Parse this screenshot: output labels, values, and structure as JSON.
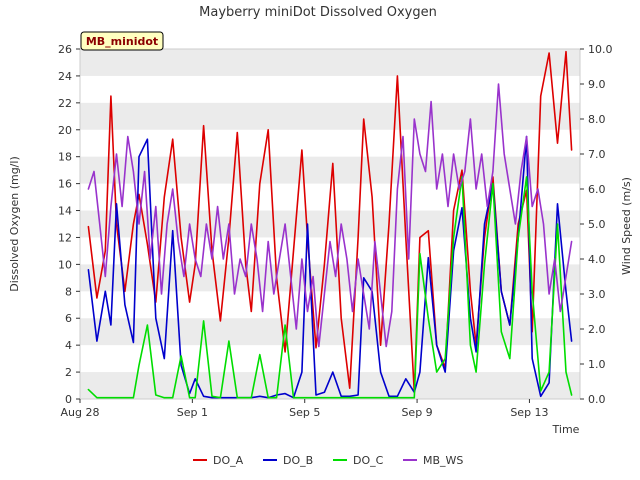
{
  "chart_data": {
    "type": "line",
    "title": "Mayberry miniDot Dissolved Oxygen",
    "badge": "MB_minidot",
    "xlabel": "Time",
    "ylabel": "Dissolved Oxygen (mg/l)",
    "y2label": "Wind Speed (m/s)",
    "x_unit": "days since Aug 28",
    "xlim": [
      0,
      17.8
    ],
    "ylim": [
      0,
      26
    ],
    "y2lim": [
      0,
      10
    ],
    "x_ticks": [
      {
        "value": 0,
        "label": "Aug 28"
      },
      {
        "value": 4,
        "label": "Sep 1"
      },
      {
        "value": 8,
        "label": "Sep 5"
      },
      {
        "value": 12,
        "label": "Sep 9"
      },
      {
        "value": 16,
        "label": "Sep 13"
      }
    ],
    "y_ticks": [
      {
        "value": 0,
        "label": "0"
      },
      {
        "value": 2,
        "label": "2"
      },
      {
        "value": 4,
        "label": "4"
      },
      {
        "value": 6,
        "label": "6"
      },
      {
        "value": 8,
        "label": "8"
      },
      {
        "value": 10,
        "label": "10"
      },
      {
        "value": 12,
        "label": "12"
      },
      {
        "value": 14,
        "label": "14"
      },
      {
        "value": 16,
        "label": "16"
      },
      {
        "value": 18,
        "label": "18"
      },
      {
        "value": 20,
        "label": "20"
      },
      {
        "value": 22,
        "label": "22"
      },
      {
        "value": 24,
        "label": "24"
      },
      {
        "value": 26,
        "label": "26"
      }
    ],
    "y2_ticks": [
      {
        "value": 0,
        "label": "0.0"
      },
      {
        "value": 1,
        "label": "1.0"
      },
      {
        "value": 2,
        "label": "2.0"
      },
      {
        "value": 3,
        "label": "3.0"
      },
      {
        "value": 4,
        "label": "4.0"
      },
      {
        "value": 5,
        "label": "5.0"
      },
      {
        "value": 6,
        "label": "6.0"
      },
      {
        "value": 7,
        "label": "7.0"
      },
      {
        "value": 8,
        "label": "8.0"
      },
      {
        "value": 9,
        "label": "9.0"
      },
      {
        "value": 10,
        "label": "10.0"
      }
    ],
    "background_bands": [
      [
        0,
        2
      ],
      [
        4,
        6
      ],
      [
        8,
        10
      ],
      [
        12,
        14
      ],
      [
        16,
        18
      ],
      [
        20,
        22
      ],
      [
        24,
        26
      ]
    ],
    "band_color": "#ebebeb",
    "series": [
      {
        "name": "DO_A",
        "color": "#dd0000",
        "axis": "left",
        "x": [
          0.3,
          0.6,
          0.9,
          1.1,
          1.3,
          1.6,
          1.9,
          2.1,
          2.4,
          2.7,
          3.0,
          3.3,
          3.6,
          3.9,
          4.1,
          4.4,
          4.7,
          5.0,
          5.3,
          5.6,
          5.9,
          6.1,
          6.4,
          6.7,
          7.0,
          7.3,
          7.6,
          7.9,
          8.1,
          8.4,
          8.7,
          9.0,
          9.3,
          9.6,
          9.9,
          10.1,
          10.4,
          10.7,
          11.0,
          11.3,
          11.6,
          11.9,
          12.1,
          12.4,
          12.7,
          13.0,
          13.3,
          13.6,
          13.9,
          14.1,
          14.4,
          14.7,
          15.0,
          15.3,
          15.6,
          15.9,
          16.1,
          16.4,
          16.7,
          17.0,
          17.3,
          17.5
        ],
        "y": [
          12.8,
          7.5,
          11,
          22.5,
          13,
          8,
          13,
          15.2,
          11.5,
          7.2,
          15,
          19.3,
          12,
          7.2,
          10,
          20.3,
          11,
          5.8,
          12,
          19.8,
          10,
          6.5,
          16,
          20,
          9,
          3.5,
          11,
          18.5,
          12,
          3.8,
          10,
          17.5,
          6,
          0.8,
          12,
          20.8,
          15,
          4,
          13,
          24,
          12,
          0.5,
          12,
          12.5,
          4,
          2.3,
          14,
          17,
          8,
          4,
          12,
          16.5,
          8,
          5.5,
          13,
          15.5,
          5,
          22.5,
          25.7,
          19,
          25.8,
          18.5
        ]
      },
      {
        "name": "DO_B",
        "color": "#0000cc",
        "axis": "left",
        "x": [
          0.3,
          0.6,
          0.9,
          1.1,
          1.3,
          1.6,
          1.9,
          2.1,
          2.4,
          2.7,
          3.0,
          3.3,
          3.6,
          3.9,
          4.1,
          4.4,
          4.7,
          5.0,
          5.3,
          5.6,
          5.9,
          6.1,
          6.4,
          6.7,
          7.0,
          7.3,
          7.6,
          7.9,
          8.1,
          8.4,
          8.7,
          9.0,
          9.3,
          9.6,
          9.9,
          10.1,
          10.4,
          10.7,
          11.0,
          11.3,
          11.6,
          11.9,
          12.1,
          12.4,
          12.7,
          13.0,
          13.3,
          13.6,
          13.9,
          14.1,
          14.4,
          14.7,
          15.0,
          15.3,
          15.6,
          15.9,
          16.1,
          16.4,
          16.7,
          17.0,
          17.3,
          17.5
        ],
        "y": [
          9.6,
          4.3,
          8,
          5.5,
          14.5,
          7,
          4.2,
          18,
          19.3,
          6,
          3,
          12.5,
          2.5,
          0.4,
          1.5,
          0.2,
          0.1,
          0.1,
          0.1,
          0.1,
          0.1,
          0.1,
          0.2,
          0.1,
          0.3,
          0.4,
          0.1,
          2,
          13,
          0.3,
          0.5,
          2,
          0.2,
          0.2,
          0.3,
          9,
          8,
          2,
          0.2,
          0.2,
          1.5,
          0.5,
          2,
          10.5,
          4,
          2,
          11,
          14.2,
          6,
          3.5,
          13,
          16,
          8,
          5.5,
          12,
          19.5,
          3,
          0.2,
          1.2,
          14.5,
          8,
          4.3
        ]
      },
      {
        "name": "DO_C",
        "color": "#00dd00",
        "axis": "left",
        "x": [
          0.3,
          0.6,
          0.9,
          1.1,
          1.3,
          1.6,
          1.9,
          2.1,
          2.4,
          2.7,
          3.0,
          3.3,
          3.6,
          3.9,
          4.1,
          4.4,
          4.7,
          5.0,
          5.3,
          5.6,
          5.9,
          6.1,
          6.4,
          6.7,
          7.0,
          7.3,
          7.6,
          7.9,
          8.1,
          8.4,
          8.7,
          9.0,
          9.3,
          9.6,
          9.9,
          10.1,
          10.4,
          10.7,
          11.0,
          11.3,
          11.6,
          11.9,
          12.1,
          12.4,
          12.7,
          13.0,
          13.3,
          13.6,
          13.9,
          14.1,
          14.4,
          14.7,
          15.0,
          15.3,
          15.6,
          15.9,
          16.1,
          16.4,
          16.7,
          17.0,
          17.3,
          17.5
        ],
        "y": [
          0.7,
          0.1,
          0.1,
          0.1,
          0.1,
          0.1,
          0.1,
          2.5,
          5.5,
          0.3,
          0.1,
          0.1,
          3.2,
          0.1,
          0.1,
          5.8,
          0.2,
          0.1,
          4.3,
          0.1,
          0.1,
          0.1,
          3.3,
          0.1,
          0.1,
          5.5,
          0.1,
          0.1,
          0.1,
          0.1,
          0.1,
          0.1,
          0.1,
          0.1,
          0.1,
          0.1,
          0.1,
          0.1,
          0.1,
          0.1,
          0.1,
          0.1,
          10.8,
          6,
          2,
          3,
          12,
          16.5,
          4,
          2,
          10,
          16,
          5,
          3,
          12,
          16.5,
          8,
          0.6,
          2,
          13,
          2,
          0.3
        ]
      },
      {
        "name": "MB_WS",
        "color": "#9933cc",
        "axis": "right",
        "x": [
          0.3,
          0.5,
          0.7,
          0.9,
          1.1,
          1.3,
          1.5,
          1.7,
          1.9,
          2.1,
          2.3,
          2.5,
          2.7,
          2.9,
          3.1,
          3.3,
          3.5,
          3.7,
          3.9,
          4.1,
          4.3,
          4.5,
          4.7,
          4.9,
          5.1,
          5.3,
          5.5,
          5.7,
          5.9,
          6.1,
          6.3,
          6.5,
          6.7,
          6.9,
          7.1,
          7.3,
          7.5,
          7.7,
          7.9,
          8.1,
          8.3,
          8.5,
          8.7,
          8.9,
          9.1,
          9.3,
          9.5,
          9.7,
          9.9,
          10.1,
          10.3,
          10.5,
          10.7,
          10.9,
          11.1,
          11.3,
          11.5,
          11.7,
          11.9,
          12.1,
          12.3,
          12.5,
          12.7,
          12.9,
          13.1,
          13.3,
          13.5,
          13.7,
          13.9,
          14.1,
          14.3,
          14.5,
          14.7,
          14.9,
          15.1,
          15.3,
          15.5,
          15.7,
          15.9,
          16.1,
          16.3,
          16.5,
          16.7,
          16.9,
          17.1,
          17.3,
          17.5
        ],
        "y": [
          6.0,
          6.5,
          5.0,
          3.5,
          5.5,
          7.0,
          5.5,
          7.5,
          6.5,
          5.0,
          6.5,
          4.0,
          5.5,
          3.0,
          5.0,
          6.0,
          4.5,
          3.5,
          5.0,
          4.0,
          3.5,
          5.0,
          4.0,
          5.5,
          4.0,
          5.0,
          3.0,
          4.0,
          3.5,
          5.0,
          4.0,
          2.5,
          4.5,
          3.0,
          4.0,
          5.0,
          3.5,
          2.0,
          4.0,
          2.5,
          3.5,
          1.5,
          3.0,
          4.5,
          3.5,
          5.0,
          4.0,
          2.5,
          4.0,
          3.0,
          2.0,
          4.5,
          3.0,
          1.5,
          2.5,
          6.0,
          7.5,
          4.0,
          8.0,
          7.0,
          6.5,
          8.5,
          6.0,
          7.0,
          5.5,
          7.0,
          6.0,
          6.5,
          8.0,
          6.0,
          7.0,
          5.5,
          6.5,
          9.0,
          7.0,
          6.0,
          5.0,
          6.5,
          7.5,
          5.5,
          6.0,
          5.0,
          3.0,
          4.0,
          2.5,
          3.5,
          4.5
        ]
      }
    ],
    "legend_position": "bottom-center"
  }
}
